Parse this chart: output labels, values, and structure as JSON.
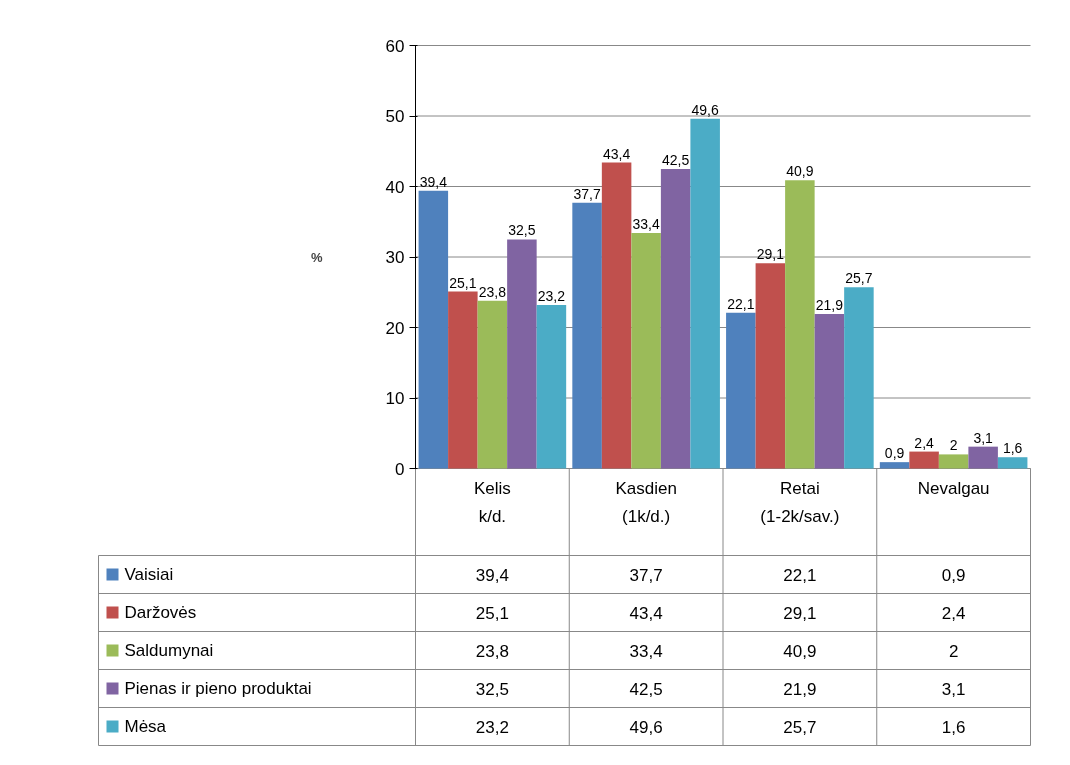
{
  "chart_data": {
    "type": "bar",
    "ylabel": "%",
    "categories": [
      "Kelis k/d.",
      "Kasdien (1k/d.)",
      "Retai (1-2k/sav.)",
      "Nevalgau"
    ],
    "series": [
      {
        "name": "Vaisiai",
        "color": "#4f81bd",
        "values": [
          39.4,
          37.7,
          22.1,
          0.9
        ],
        "value_labels": [
          "39,4",
          "37,7",
          "22,1",
          "0,9"
        ]
      },
      {
        "name": "Daržovės",
        "color": "#c0504d",
        "values": [
          25.1,
          43.4,
          29.1,
          2.4
        ],
        "value_labels": [
          "25,1",
          "43,4",
          "29,1",
          "2,4"
        ]
      },
      {
        "name": "Saldumynai",
        "color": "#9bbb59",
        "values": [
          23.8,
          33.4,
          40.9,
          2
        ],
        "value_labels": [
          "23,8",
          "33,4",
          "40,9",
          "2"
        ]
      },
      {
        "name": "Pienas ir pieno produktai",
        "color": "#8064a2",
        "values": [
          32.5,
          42.5,
          21.9,
          3.1
        ],
        "value_labels": [
          "32,5",
          "42,5",
          "21,9",
          "3,1"
        ]
      },
      {
        "name": "Mėsa",
        "color": "#4bacc6",
        "values": [
          23.2,
          49.6,
          25.7,
          1.6
        ],
        "value_labels": [
          "23,2",
          "49,6",
          "25,7",
          "1,6"
        ]
      }
    ],
    "ylim": [
      0,
      60
    ],
    "yticks": [
      0,
      10,
      20,
      30,
      40,
      50,
      60
    ],
    "grid": "y",
    "legend": "bottom"
  }
}
